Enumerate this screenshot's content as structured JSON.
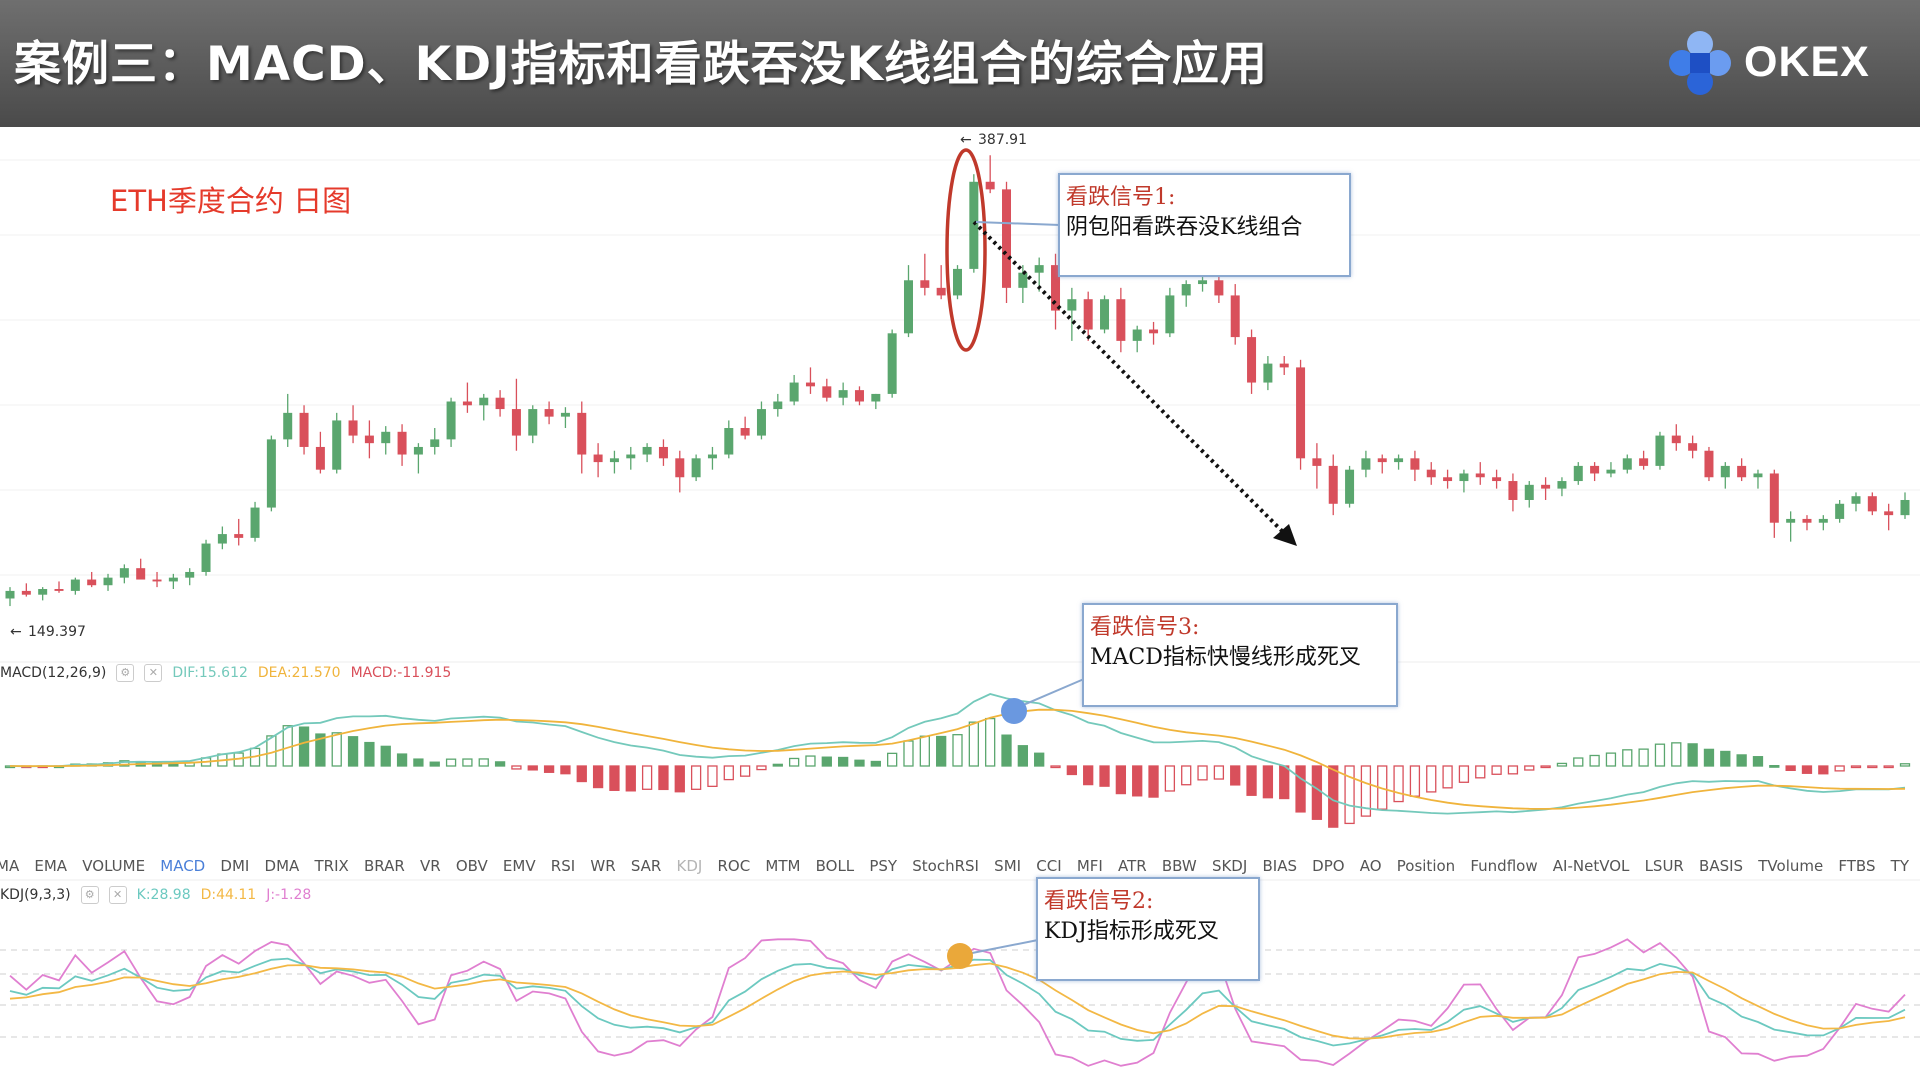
{
  "header": {
    "title": "案例三：MACD、KDJ指标和看跌吞没K线组合的综合应用",
    "brand": "OKEX"
  },
  "chart_label": "ETH季度合约  日图",
  "price_pane": {
    "high_label": "387.91",
    "low_label": "149.397"
  },
  "macd": {
    "name": "MACD(12,26,9)",
    "dif": "DIF:15.612",
    "dea": "DEA:21.570",
    "macd": "MACD:-11.915"
  },
  "kdj": {
    "name": "KDJ(9,3,3)",
    "k": "K:28.98",
    "d": "D:44.11",
    "j": "J:-1.28"
  },
  "indicator_tabs": [
    "MA",
    "EMA",
    "VOLUME",
    "MACD",
    "DMI",
    "DMA",
    "TRIX",
    "BRAR",
    "VR",
    "OBV",
    "EMV",
    "RSI",
    "WR",
    "SAR",
    "KDJ",
    "ROC",
    "MTM",
    "BOLL",
    "PSY",
    "StochRSI",
    "SMI",
    "CCI",
    "MFI",
    "ATR",
    "BBW",
    "SKDJ",
    "BIAS",
    "DPO",
    "AO",
    "Position",
    "Fundflow",
    "AI-NetVOL",
    "LSUR",
    "BASIS",
    "TVolume",
    "FTBS",
    "TY"
  ],
  "active_tab": "MACD",
  "muted_tab": "KDJ",
  "callouts": {
    "signal1_title": "看跌信号1:",
    "signal1_text": "阴包阳看跌吞没K线组合",
    "signal2_title": "看跌信号2:",
    "signal2_text": "KDJ指标形成死叉",
    "signal3_title": "看跌信号3:",
    "signal3_text": "MACD指标快慢线形成死叉"
  },
  "colors": {
    "up": "#5aa66e",
    "down": "#d9505b",
    "dif": "#74c9bb",
    "dea": "#f0b43c",
    "j": "#e07fd0",
    "k": "#6cc9c0",
    "d": "#f3b845",
    "annotation": "#c0392b",
    "marker_macd": "#6a98e0",
    "marker_kdj": "#eaa83a"
  },
  "chart_data": {
    "type": "candlestick",
    "title": "",
    "xlabel": "",
    "ylabel": "",
    "ylim": [
      140,
      395
    ],
    "annotations": [
      "387.91",
      "149.397"
    ],
    "candles": [
      [
        154,
        160,
        150,
        158
      ],
      [
        158,
        162,
        155,
        156
      ],
      [
        156,
        160,
        153,
        159
      ],
      [
        159,
        163,
        157,
        158
      ],
      [
        158,
        165,
        156,
        164
      ],
      [
        164,
        168,
        160,
        161
      ],
      [
        161,
        167,
        158,
        165
      ],
      [
        165,
        172,
        162,
        170
      ],
      [
        170,
        175,
        166,
        164
      ],
      [
        164,
        168,
        160,
        163
      ],
      [
        163,
        167,
        159,
        165
      ],
      [
        165,
        170,
        161,
        168
      ],
      [
        168,
        185,
        166,
        183
      ],
      [
        183,
        192,
        180,
        188
      ],
      [
        188,
        196,
        182,
        186
      ],
      [
        186,
        205,
        184,
        202
      ],
      [
        202,
        240,
        200,
        238
      ],
      [
        238,
        262,
        234,
        252
      ],
      [
        252,
        256,
        230,
        234
      ],
      [
        234,
        242,
        220,
        222
      ],
      [
        222,
        252,
        220,
        248
      ],
      [
        248,
        256,
        236,
        240
      ],
      [
        240,
        248,
        228,
        236
      ],
      [
        236,
        245,
        230,
        242
      ],
      [
        242,
        246,
        224,
        230
      ],
      [
        230,
        236,
        220,
        234
      ],
      [
        234,
        244,
        230,
        238
      ],
      [
        238,
        260,
        234,
        258
      ],
      [
        258,
        268,
        252,
        256
      ],
      [
        256,
        262,
        248,
        260
      ],
      [
        260,
        264,
        250,
        254
      ],
      [
        254,
        270,
        232,
        240
      ],
      [
        240,
        256,
        236,
        254
      ],
      [
        254,
        258,
        246,
        250
      ],
      [
        250,
        255,
        244,
        252
      ],
      [
        252,
        258,
        220,
        230
      ],
      [
        230,
        236,
        218,
        226
      ],
      [
        226,
        232,
        220,
        228
      ],
      [
        228,
        234,
        222,
        230
      ],
      [
        230,
        236,
        226,
        234
      ],
      [
        234,
        238,
        224,
        228
      ],
      [
        228,
        232,
        210,
        218
      ],
      [
        218,
        230,
        216,
        228
      ],
      [
        228,
        234,
        222,
        230
      ],
      [
        230,
        248,
        228,
        244
      ],
      [
        244,
        250,
        238,
        240
      ],
      [
        240,
        258,
        238,
        254
      ],
      [
        254,
        262,
        250,
        258
      ],
      [
        258,
        272,
        256,
        268
      ],
      [
        268,
        276,
        262,
        266
      ],
      [
        266,
        270,
        258,
        260
      ],
      [
        260,
        268,
        256,
        264
      ],
      [
        264,
        266,
        256,
        258
      ],
      [
        258,
        262,
        254,
        262
      ],
      [
        262,
        296,
        260,
        294
      ],
      [
        294,
        330,
        292,
        322
      ],
      [
        322,
        336,
        314,
        318
      ],
      [
        318,
        330,
        312,
        314
      ],
      [
        314,
        330,
        312,
        328
      ],
      [
        328,
        378,
        326,
        374
      ],
      [
        374,
        388,
        368,
        370
      ],
      [
        370,
        374,
        310,
        318
      ],
      [
        318,
        330,
        310,
        326
      ],
      [
        326,
        334,
        316,
        330
      ],
      [
        330,
        336,
        296,
        306
      ],
      [
        306,
        318,
        290,
        312
      ],
      [
        312,
        316,
        290,
        296
      ],
      [
        296,
        314,
        294,
        312
      ],
      [
        312,
        318,
        284,
        290
      ],
      [
        290,
        298,
        284,
        296
      ],
      [
        296,
        300,
        288,
        294
      ],
      [
        294,
        318,
        292,
        314
      ],
      [
        314,
        322,
        308,
        320
      ],
      [
        320,
        328,
        316,
        322
      ],
      [
        322,
        330,
        310,
        314
      ],
      [
        314,
        320,
        288,
        292
      ],
      [
        292,
        296,
        262,
        268
      ],
      [
        268,
        282,
        264,
        278
      ],
      [
        278,
        282,
        272,
        276
      ],
      [
        276,
        280,
        222,
        228
      ],
      [
        228,
        236,
        212,
        224
      ],
      [
        224,
        230,
        198,
        204
      ],
      [
        204,
        224,
        202,
        222
      ],
      [
        222,
        232,
        218,
        228
      ],
      [
        228,
        230,
        220,
        226
      ],
      [
        226,
        230,
        222,
        228
      ],
      [
        228,
        232,
        216,
        222
      ],
      [
        222,
        226,
        214,
        218
      ],
      [
        218,
        222,
        212,
        216
      ],
      [
        216,
        222,
        210,
        220
      ],
      [
        220,
        226,
        214,
        218
      ],
      [
        218,
        222,
        212,
        216
      ],
      [
        216,
        220,
        200,
        206
      ],
      [
        206,
        216,
        202,
        214
      ],
      [
        214,
        218,
        206,
        212
      ],
      [
        212,
        218,
        208,
        216
      ],
      [
        216,
        226,
        214,
        224
      ],
      [
        224,
        226,
        216,
        220
      ],
      [
        220,
        226,
        218,
        222
      ],
      [
        222,
        230,
        220,
        228
      ],
      [
        228,
        232,
        222,
        224
      ],
      [
        224,
        242,
        222,
        240
      ],
      [
        240,
        246,
        232,
        236
      ],
      [
        236,
        240,
        228,
        232
      ],
      [
        232,
        234,
        216,
        218
      ],
      [
        218,
        226,
        212,
        224
      ],
      [
        224,
        228,
        216,
        218
      ],
      [
        218,
        222,
        212,
        220
      ],
      [
        220,
        222,
        186,
        194
      ],
      [
        194,
        200,
        184,
        196
      ],
      [
        196,
        198,
        190,
        194
      ],
      [
        194,
        198,
        190,
        196
      ],
      [
        196,
        206,
        194,
        204
      ],
      [
        204,
        210,
        200,
        208
      ],
      [
        208,
        210,
        198,
        200
      ],
      [
        200,
        204,
        190,
        198
      ],
      [
        198,
        210,
        196,
        206
      ]
    ]
  }
}
